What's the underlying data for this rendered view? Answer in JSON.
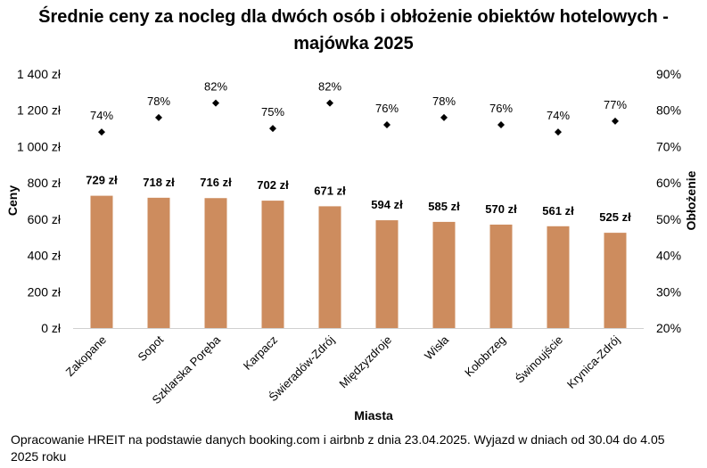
{
  "title_line1": "Średnie ceny za nocleg dla dwóch osób i obłożenie obiektów hotelowych -",
  "title_line2": "majówka 2025",
  "footer_line1": "Opracowanie HREIT na podstawie danych booking.com i airbnb z dnia 23.04.2025. Wyjazd w dniach od 30.04 do 4.05",
  "footer_line2": "2025 roku",
  "colors": {
    "bar": "#cd8c5e",
    "marker": "#000000"
  },
  "chart_data": {
    "type": "bar",
    "xlabel": "Miasta",
    "ylabel": "Ceny",
    "y2label": "Obłożenie",
    "categories": [
      "Zakopane",
      "Sopot",
      "Szklarska Poręba",
      "Karpacz",
      "Świeradów-Zdrój",
      "Międzyzdroje",
      "Wisła",
      "Kołobrzeg",
      "Świnoujście",
      "Krynica-Zdrój"
    ],
    "ylim": [
      0,
      1400
    ],
    "y2lim": [
      20,
      90
    ],
    "y_ticks": [
      "0 zł",
      "200 zł",
      "400 zł",
      "600 zł",
      "800 zł",
      "1 000 zł",
      "1 200 zł",
      "1 400 zł"
    ],
    "y2_ticks": [
      "20%",
      "30%",
      "40%",
      "50%",
      "60%",
      "70%",
      "80%",
      "90%"
    ],
    "grid": false,
    "series": [
      {
        "type": "bar",
        "values": [
          729,
          718,
          716,
          702,
          671,
          594,
          585,
          570,
          561,
          525
        ],
        "labels": [
          "729 zł",
          "718 zł",
          "716 zł",
          "702 zł",
          "671 zł",
          "594 zł",
          "585 zł",
          "570 zł",
          "561 zł",
          "525 zł"
        ]
      },
      {
        "type": "scatter",
        "axis": "secondary",
        "values": [
          74,
          78,
          82,
          75,
          82,
          76,
          78,
          76,
          74,
          77
        ],
        "labels": [
          "74%",
          "78%",
          "82%",
          "75%",
          "82%",
          "76%",
          "78%",
          "76%",
          "74%",
          "77%"
        ]
      }
    ]
  }
}
